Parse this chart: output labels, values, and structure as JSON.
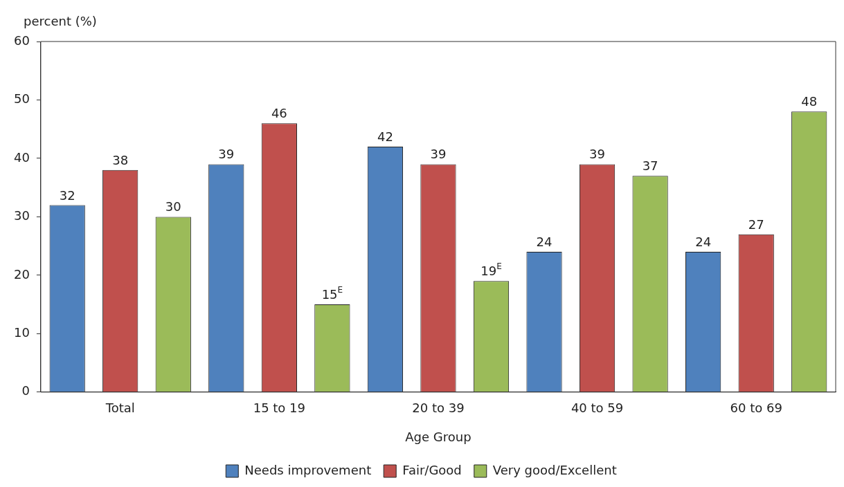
{
  "chart_data": {
    "type": "bar",
    "ylabel": "percent (%)",
    "xlabel": "Age Group",
    "categories": [
      "Total",
      "15 to 19",
      "20 to 39",
      "40 to 59",
      "60 to 69"
    ],
    "series": [
      {
        "name": "Needs improvement",
        "color": "#4f81bd",
        "values": [
          32,
          39,
          42,
          24,
          24
        ],
        "value_labels": [
          "32",
          "39",
          "42",
          "24",
          "24"
        ]
      },
      {
        "name": "Fair/Good",
        "color": "#c0504d",
        "values": [
          38,
          46,
          39,
          39,
          27
        ],
        "value_labels": [
          "38",
          "46",
          "39",
          "39",
          "27"
        ]
      },
      {
        "name": "Very good/Excellent",
        "color": "#9bbb59",
        "values": [
          30,
          15,
          19,
          37,
          48
        ],
        "value_labels": [
          "30",
          "15$^{E}$",
          "19$^{E}$",
          "37",
          "48"
        ]
      }
    ],
    "ylim": [
      0,
      60
    ],
    "yticks": [
      0,
      10,
      20,
      30,
      40,
      50,
      60
    ],
    "grid": false,
    "legend": "bottom"
  }
}
